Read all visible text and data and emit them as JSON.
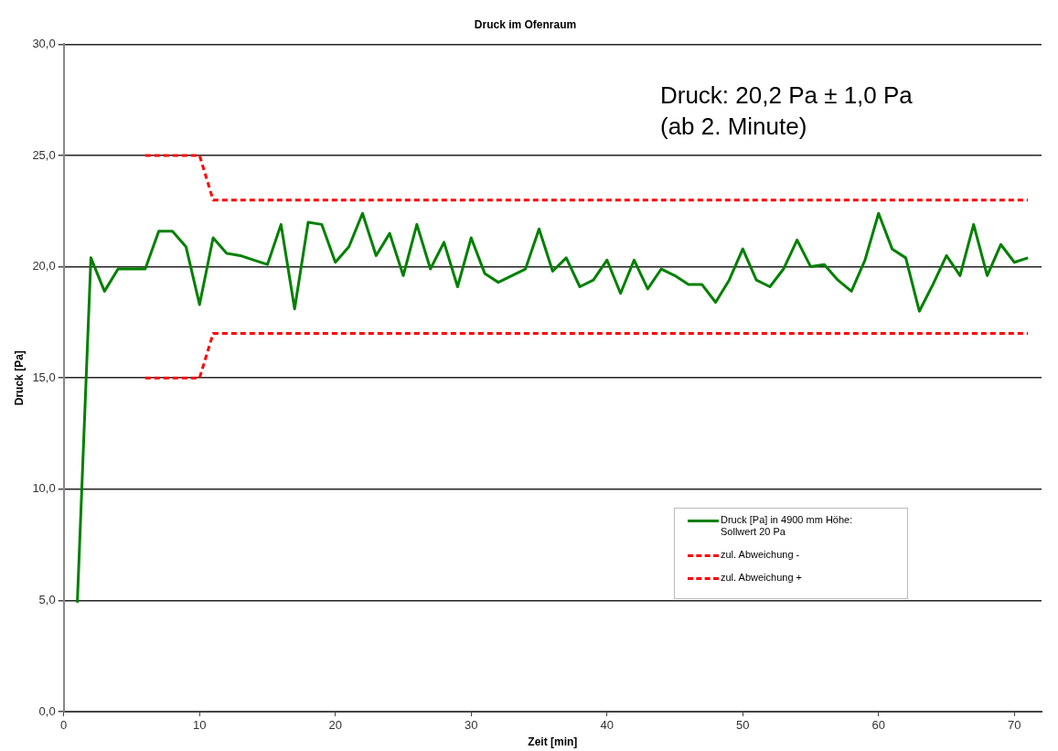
{
  "chart_data": {
    "type": "line",
    "title": "Druck im Ofenraum",
    "xlabel": "Zeit [min]",
    "ylabel": "Druck [Pa]",
    "annotations": [
      "Druck: 20,2 Pa ± 1,0 Pa",
      "(ab 2. Minute)"
    ],
    "xlim": [
      0,
      72
    ],
    "xticks": [
      0,
      10,
      20,
      30,
      40,
      50,
      60,
      70
    ],
    "ylim": [
      0,
      30
    ],
    "yticks": [
      {
        "value": 0,
        "label": "0,0"
      },
      {
        "value": 5,
        "label": "5,0"
      },
      {
        "value": 10,
        "label": "10,0"
      },
      {
        "value": 15,
        "label": "15,0"
      },
      {
        "value": 20,
        "label": "20,0"
      },
      {
        "value": 25,
        "label": "25,0"
      },
      {
        "value": 30,
        "label": "30,0"
      }
    ],
    "grid": "y",
    "legend": "bottom right",
    "marker": "none",
    "series": [
      {
        "name": "Druck [Pa] in 4900 mm Höhe: Sollwert 20 Pa",
        "color": "#008000",
        "line_style": "solid",
        "x": [
          1,
          2,
          3,
          4,
          5,
          6,
          7,
          8,
          9,
          10,
          11,
          12,
          13,
          14,
          15,
          16,
          17,
          18,
          19,
          20,
          21,
          22,
          23,
          24,
          25,
          26,
          27,
          28,
          29,
          30,
          31,
          32,
          33,
          34,
          35,
          36,
          37,
          38,
          39,
          40,
          41,
          42,
          43,
          44,
          45,
          46,
          47,
          48,
          49,
          50,
          51,
          52,
          53,
          54,
          55,
          56,
          57,
          58,
          59,
          60,
          61,
          62,
          63,
          64,
          65,
          66,
          67,
          68,
          69,
          70,
          71
        ],
        "values": [
          4.9,
          20.4,
          18.9,
          19.9,
          19.9,
          19.9,
          21.6,
          21.6,
          20.9,
          18.3,
          21.3,
          20.6,
          20.5,
          20.3,
          20.1,
          21.9,
          18.1,
          22.0,
          21.9,
          20.2,
          20.9,
          22.4,
          20.5,
          21.5,
          19.6,
          21.9,
          19.9,
          21.1,
          19.1,
          21.3,
          19.7,
          19.3,
          19.6,
          19.9,
          21.7,
          19.8,
          20.4,
          19.1,
          19.4,
          20.3,
          18.8,
          20.3,
          19.0,
          19.9,
          19.6,
          19.2,
          19.2,
          18.4,
          19.4,
          20.8,
          19.4,
          19.1,
          19.9,
          21.2,
          20.0,
          20.1,
          19.4,
          18.9,
          20.3,
          22.4,
          20.8,
          20.4,
          18.0,
          19.2,
          20.5,
          19.6,
          21.9,
          19.6,
          21.0,
          20.2,
          20.4
        ]
      },
      {
        "name": "zul. Abweichung -",
        "color": "#ff0000",
        "line_style": "dashed",
        "x": [
          6,
          10,
          11,
          71
        ],
        "values": [
          15,
          15,
          17,
          17
        ]
      },
      {
        "name": "zul. Abweichung +",
        "color": "#ff0000",
        "line_style": "dashed",
        "x": [
          6,
          10,
          11,
          71
        ],
        "values": [
          25,
          25,
          23,
          23
        ]
      }
    ]
  }
}
